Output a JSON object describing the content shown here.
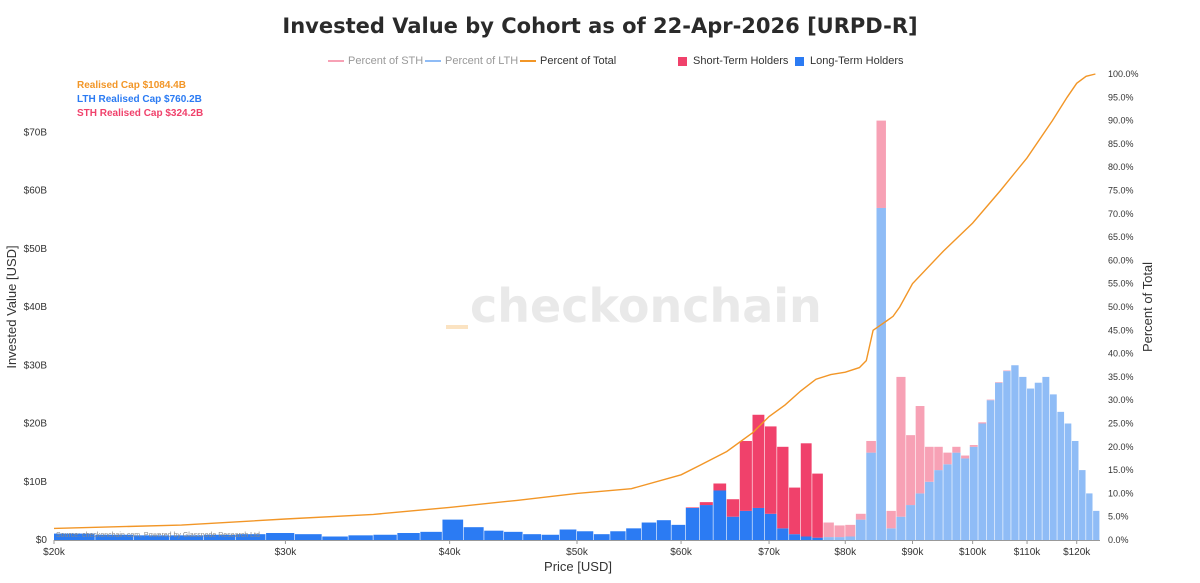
{
  "title": "Invested Value by Cohort as of 22-Apr-2026 [URPD-R]",
  "legend": {
    "pct_sth": "Percent of STH",
    "pct_lth": "Percent of LTH",
    "pct_total": "Percent of Total",
    "sth": "Short-Term Holders",
    "lth": "Long-Term Holders"
  },
  "annotations": {
    "realised": "Realised Cap $1084.4B",
    "lth": "LTH Realised Cap $760.2B",
    "sth": "STH Realised Cap $324.2B"
  },
  "watermark": "checkonchain",
  "source": "Source: checkonchain.com, Powered by Glassnode Research Ltd",
  "colors": {
    "sth": "#f0416b",
    "sth_light": "#f7a1b5",
    "lth": "#2b7bf3",
    "lth_light": "#8fbcf6",
    "total_line": "#f29627"
  },
  "chart_data": {
    "type": "bar",
    "x_scale": "log",
    "xlabel": "Price [USD]",
    "ylabel": "Invested Value [USD]",
    "y2label": "Percent of Total",
    "xlim": [
      20000,
      125000
    ],
    "ylim": [
      0,
      80
    ],
    "y2lim": [
      0,
      100
    ],
    "x_ticks": [
      20000,
      30000,
      40000,
      50000,
      60000,
      70000,
      80000,
      90000,
      100000,
      110000,
      120000
    ],
    "x_tick_labels": [
      "$20k",
      "$30k",
      "$40k",
      "$50k",
      "$60k",
      "$70k",
      "$80k",
      "$90k",
      "$100k",
      "$110k",
      "$120k"
    ],
    "y_ticks": [
      0,
      10,
      20,
      30,
      40,
      50,
      60,
      70
    ],
    "y_tick_labels": [
      "$0",
      "$10B",
      "$20B",
      "$30B",
      "$40B",
      "$50B",
      "$60B",
      "$70B"
    ],
    "y2_ticks": [
      0,
      5,
      10,
      15,
      20,
      25,
      30,
      35,
      40,
      45,
      50,
      55,
      60,
      65,
      70,
      75,
      80,
      85,
      90,
      95,
      100
    ],
    "y2_tick_labels": [
      "0.0%",
      "5.0%",
      "10.0%",
      "15.0%",
      "20.0%",
      "25.0%",
      "30.0%",
      "35.0%",
      "40.0%",
      "45.0%",
      "50.0%",
      "55.0%",
      "60.0%",
      "65.0%",
      "70.0%",
      "75.0%",
      "80.0%",
      "85.0%",
      "90.0%",
      "95.0%",
      "100.0%"
    ],
    "bin_edges": [
      20000,
      21500,
      23000,
      24500,
      26000,
      27500,
      29000,
      30500,
      32000,
      33500,
      35000,
      36500,
      38000,
      39500,
      41000,
      42500,
      44000,
      45500,
      47000,
      48500,
      50000,
      51500,
      53000,
      54500,
      56000,
      57500,
      59000,
      60500,
      62000,
      63500,
      65000,
      66500,
      68000,
      69500,
      71000,
      72500,
      74000,
      75500,
      77000,
      78500,
      80000,
      81500,
      83000,
      84500,
      86000,
      87500,
      89000,
      90500,
      92000,
      93500,
      95000,
      96500,
      98000,
      99500,
      101000,
      102500,
      104000,
      105500,
      107000,
      108500,
      110000,
      111500,
      113000,
      114500,
      116000,
      117500,
      119000,
      120500,
      122000,
      123500,
      125000
    ],
    "series": [
      {
        "name": "Long-Term Holders",
        "cohort": "lth",
        "values": [
          1.1,
          0.9,
          0.8,
          0.8,
          0.9,
          1.0,
          1.2,
          1.0,
          0.6,
          0.8,
          0.9,
          1.2,
          1.4,
          3.5,
          2.2,
          1.6,
          1.4,
          1.0,
          0.9,
          1.8,
          1.5,
          1.0,
          1.5,
          2.0,
          3.0,
          3.4,
          2.6,
          5.5,
          6.0,
          8.5,
          4.0,
          5.0,
          5.5,
          4.5,
          2.0,
          1.0,
          0.6,
          0.4,
          0.5,
          0.5,
          0.6,
          3.5,
          15.0,
          57.0,
          2.0,
          4.0,
          6.0,
          8.0,
          10.0,
          12.0,
          13.0,
          15.0,
          14.0,
          16.0,
          20.0,
          24.0,
          27.0,
          29.0,
          30.0,
          28.0,
          26.0,
          27.0,
          28.0,
          25.0,
          22.0,
          20.0,
          17.0,
          12.0,
          8.0,
          5.0
        ]
      },
      {
        "name": "Short-Term Holders",
        "cohort": "sth",
        "values": [
          0,
          0,
          0,
          0,
          0,
          0,
          0,
          0,
          0,
          0,
          0,
          0,
          0,
          0,
          0,
          0,
          0,
          0,
          0,
          0,
          0,
          0,
          0,
          0,
          0,
          0,
          0,
          0.1,
          0.5,
          1.2,
          3.0,
          12.0,
          16.0,
          15.0,
          14.0,
          8.0,
          16.0,
          11.0,
          2.5,
          2.0,
          2.0,
          1.0,
          2.0,
          15.0,
          3.0,
          24.0,
          12.0,
          15.0,
          6.0,
          4.0,
          2.0,
          1.0,
          0.5,
          0.3,
          0.2,
          0.1,
          0.1,
          0.1,
          0,
          0,
          0,
          0,
          0,
          0,
          0,
          0,
          0,
          0,
          0,
          0
        ]
      },
      {
        "name": "Percent of Total",
        "cohort": "total",
        "x": [
          20000,
          25000,
          30000,
          35000,
          40000,
          45000,
          50000,
          55000,
          60000,
          62000,
          65000,
          68000,
          70000,
          72000,
          74000,
          76000,
          78000,
          80000,
          82000,
          83000,
          84000,
          85000,
          86000,
          87000,
          88000,
          90000,
          95000,
          100000,
          105000,
          110000,
          115000,
          118000,
          120000,
          122000,
          124000
        ],
        "values": [
          2.5,
          3.2,
          4.5,
          5.5,
          7.0,
          8.5,
          10.0,
          11.0,
          14.0,
          16.0,
          19.0,
          23.0,
          26.5,
          29.0,
          32.0,
          34.5,
          35.5,
          36.0,
          37.0,
          38.5,
          45.0,
          46.0,
          47.0,
          48.0,
          50.0,
          55.0,
          62.0,
          68.0,
          75.0,
          82.0,
          90.0,
          95.0,
          98.0,
          99.5,
          100.0
        ]
      }
    ]
  }
}
